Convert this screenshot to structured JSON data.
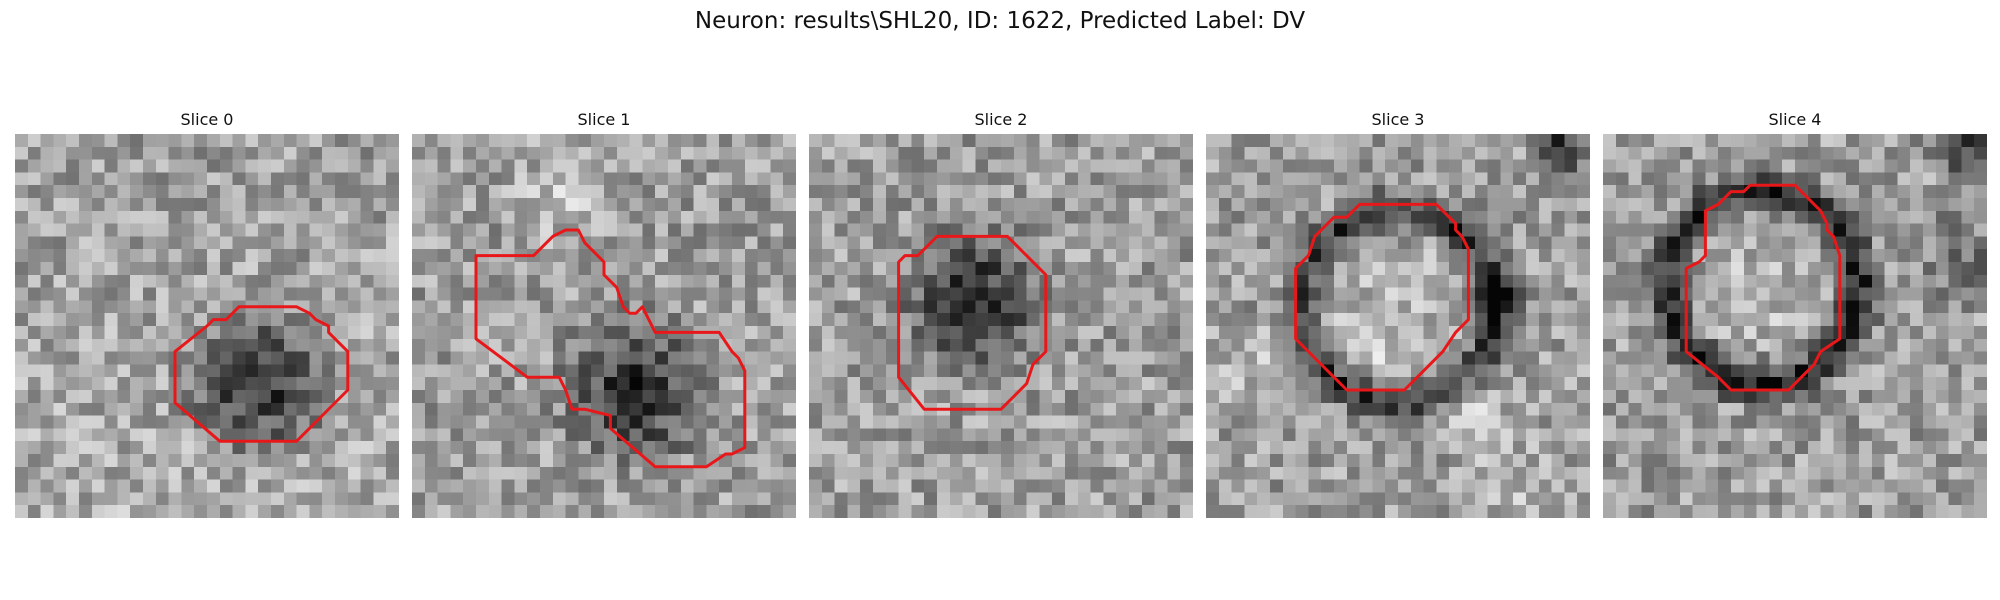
{
  "figure": {
    "title": "Neuron: results\\SHL20, ID: 1622, Predicted Label: DV"
  },
  "colors": {
    "outline": "#e8181a",
    "background": "#ffffff"
  },
  "panels": [
    {
      "title": "Slice 0"
    },
    {
      "title": "Slice 1"
    },
    {
      "title": "Slice 2"
    },
    {
      "title": "Slice 3"
    },
    {
      "title": "Slice 4"
    }
  ]
}
